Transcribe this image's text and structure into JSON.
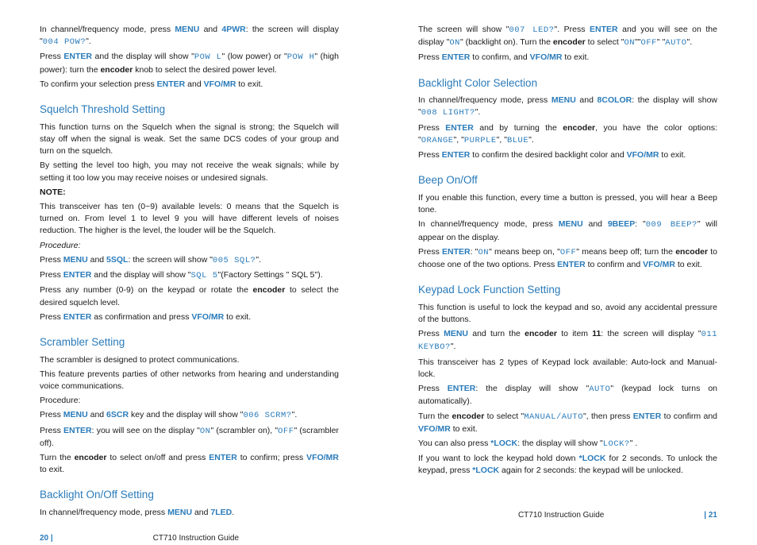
{
  "colors": {
    "blue": "#2a7bba",
    "text": "#1a1a1a",
    "lcd_grey": "#888"
  },
  "footer": {
    "left_page": "20 |",
    "right_page": "| 21",
    "guide": "CT710 Instruction Guide"
  },
  "left": {
    "intro_p1a": "In channel/frequency mode, press ",
    "intro_p1b": " and ",
    "intro_p1c": ": the screen will display \"",
    "intro_p1d": "\".",
    "menu": "MENU",
    "fourpwr": "4PWR",
    "lcd_004": "004 POW?",
    "p2a": "Press ",
    "p2b": " and the display will show \"",
    "p2c": "\" (low power) or \"",
    "p2d": "\" (high power): turn the ",
    "p2e": " knob to select the desired power level.",
    "enter": "ENTER",
    "lcd_powl": "POW L",
    "lcd_powh": "POW H",
    "encoder": "encoder",
    "p3a": "To confirm your selection press ",
    "p3b": " and ",
    "p3c": " to exit.",
    "vfomr": "VFO/MR",
    "squelch_heading": "Squelch Threshold Setting",
    "sq1": "This function turns on the Squelch when the signal is strong; the Squelch will stay off when the signal is weak. Set the same DCS codes of your group and turn on the squelch.",
    "sq2": "By setting the level too high, you may not receive the weak signals; while by setting it too low you may receive noises or undesired signals.",
    "note": "NOTE:",
    "sq3": "This transceiver has ten (0~9) available levels: 0 means that the Squelch is turned on. From level 1 to level 9 you will have different levels of noises reduction. The higher is the level, the louder will be the Squelch.",
    "procedure": "Procedure:",
    "sq4a": "Press ",
    "sq4b": " and ",
    "sq4c": ": the screen will show \"",
    "sq4d": "\".",
    "fivesql": "5SQL",
    "lcd_005": "005 SQL?",
    "sq5a": "Press ",
    "sq5b": " and the display will show \"",
    "sq5c": "\"(Factory Settings \" SQL 5\").",
    "lcd_sql5": "SQL 5",
    "sq6a": "Press any number (0-9) on the keypad or rotate the ",
    "sq6b": " to select the desired squelch level.",
    "sq7a": "Press ",
    "sq7b": " as confirmation and press ",
    "sq7c": " to exit.",
    "scr_heading": "Scrambler Setting",
    "scr1": "The scrambler is designed to protect communications.",
    "scr2": "This feature prevents parties of other networks from hearing and understanding voice communications.",
    "scr3": "Procedure:",
    "scr4a": "Press ",
    "scr4b": " and ",
    "scr4c": " key and the display will show \"",
    "scr4d": "\".",
    "sixscr": "6SCR",
    "lcd_006": "006 SCRM?",
    "scr5a": "Press ",
    "scr5b": ": you will see on the display \"",
    "scr5c": "\" (scrambler on), \"",
    "scr5d": "\" (scrambler off).",
    "lcd_on": "ON",
    "lcd_off": "OFF",
    "scr6a": "Turn the ",
    "scr6b": " to select on/off and press ",
    "scr6c": " to confirm; press ",
    "scr6d": " to exit.",
    "bl_heading": "Backlight On/Off Setting",
    "bl1a": "In channel/frequency mode, press ",
    "bl1b": " and ",
    "bl1c": ".",
    "sevenled": "7LED"
  },
  "right": {
    "r1a": "The screen will show \"",
    "r1b": "\". Press ",
    "r1c": " and you will see on the display \"",
    "r1d": "\" (backlight on). Turn the ",
    "r1e": " to select \"",
    "r1f": "\"\"",
    "r1g": "\" \"",
    "r1h": "\".",
    "lcd_007": "007 LED?",
    "enter": "ENTER",
    "lcd_on": "ON",
    "encoder": "encoder",
    "lcd_off": "OFF",
    "lcd_auto": "AUTO",
    "r2a": "Press ",
    "r2b": " to confirm, and ",
    "r2c": " to exit.",
    "vfomr": "VFO/MR",
    "blc_heading": "Backlight Color Selection",
    "blc1a": "In channel/frequency mode, press ",
    "blc1b": " and ",
    "blc1c": ": the display will show \"",
    "blc1d": "\".",
    "menu": "MENU",
    "eightcolor": "8COLOR",
    "lcd_008": "008 LIGHT?",
    "blc2a": "Press ",
    "blc2b": " and by turning the ",
    "blc2c": ", you have the color options: \"",
    "blc2d": "\", \"",
    "blc2e": "\", \"",
    "blc2f": "\".",
    "lcd_orange": "ORANGE",
    "lcd_purple": "PURPLE",
    "lcd_blue": "BLUE",
    "blc3a": "Press ",
    "blc3b": " to confirm the desired backlight color and ",
    "blc3c": " to exit.",
    "beep_heading": "Beep On/Off",
    "bp1": "If you enable this function, every time a button is pressed, you will hear a Beep tone.",
    "bp2a": "In channel/frequency mode, press ",
    "bp2b": " and ",
    "bp2c": ": \"",
    "bp2d": "\" will appear on the display.",
    "ninebeep": "9BEEP",
    "lcd_009": "009 BEEP?",
    "bp3a": "Press ",
    "bp3b": ": \"",
    "bp3c": "\" means beep on, \"",
    "bp3d": "\" means beep off; turn the ",
    "bp3e": " to choose one of the two options. Press ",
    "bp3f": " to confirm and ",
    "bp3g": " to exit.",
    "encoder_b": "encoder",
    "kl_heading": "Keypad Lock Function Setting",
    "kl1": "This function is useful to lock the keypad and so, avoid any accidental pressure of the buttons.",
    "kl2a": "Press ",
    "kl2b": " and turn the ",
    "kl2c": " to item ",
    "kl2d": ": the screen will display \"",
    "kl2e": "\".",
    "eleven": "11",
    "lcd_011": "011 KEYBO?",
    "kl3": "This transceiver has 2 types of Keypad lock available: Auto-lock and Manual-lock.",
    "kl4a": "Press ",
    "kl4b": ": the display will show \"",
    "kl4c": "\" (keypad lock turns on automatically).",
    "kl5a": "Turn the ",
    "kl5b": " to select \"",
    "kl5c": "\", then press ",
    "kl5d": " to confirm and ",
    "kl5e": " to exit.",
    "lcd_manual": "MANUAL/AUTO",
    "kl6a": "You can also press ",
    "kl6b": ": the display will show \"",
    "kl6c": "\" .",
    "starlock": "*LOCK",
    "lcd_lockq": "LOCK?",
    "kl7a": "If you want to lock the keypad hold down ",
    "kl7b": " for 2 seconds. To unlock the keypad, press ",
    "kl7c": " again for 2 seconds: the keypad will be unlocked."
  }
}
